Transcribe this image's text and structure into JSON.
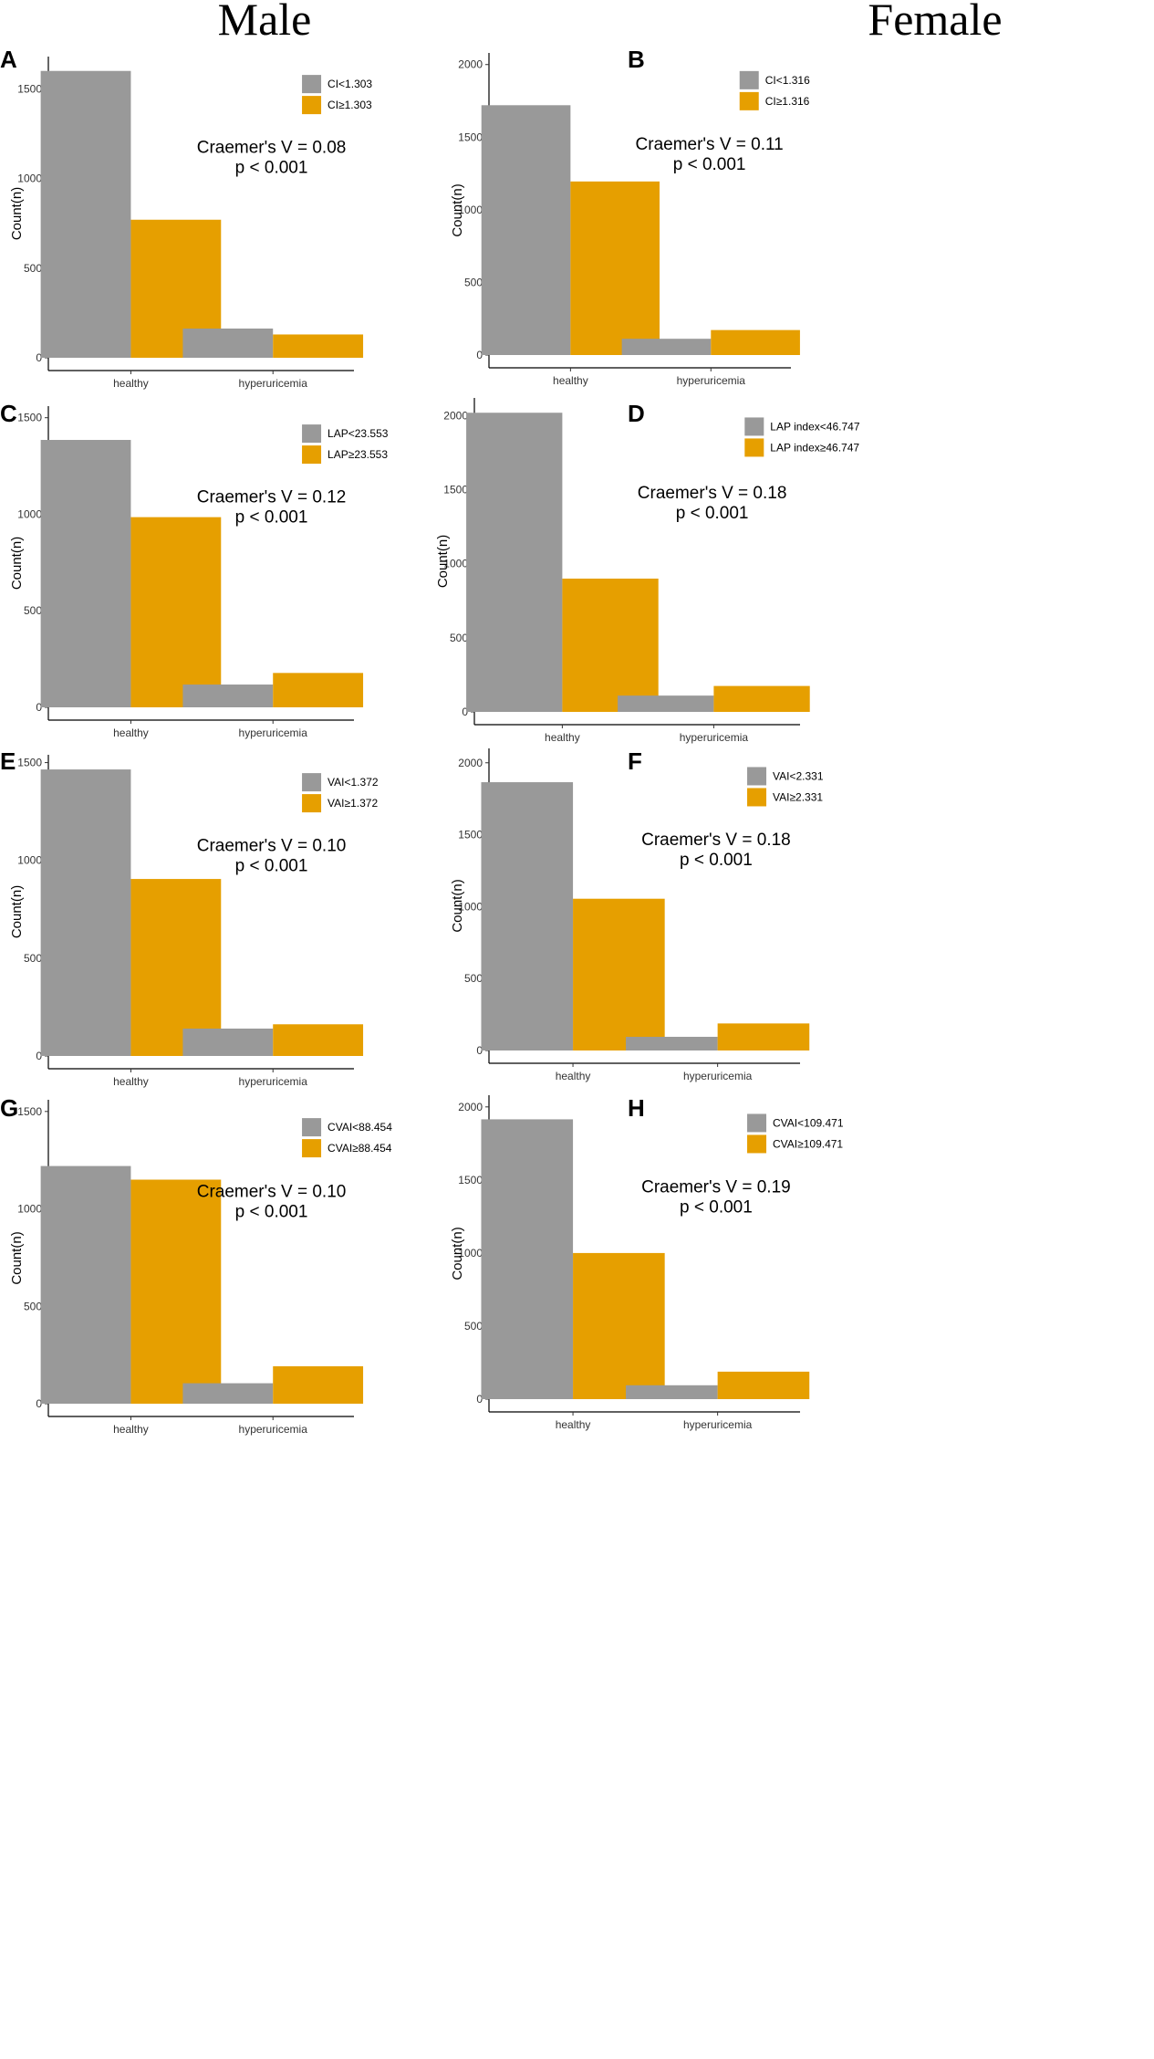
{
  "headers": {
    "male": "Male",
    "female": "Female"
  },
  "colors": {
    "low": "#999999",
    "high": "#E69F00"
  },
  "chart_data": [
    {
      "letter": "A",
      "sex": "Male",
      "type": "bar",
      "ylabel": "Count(n)",
      "ylim": [
        0,
        1680
      ],
      "yticks": [
        0,
        500,
        1000,
        1500
      ],
      "categories": [
        "healthy",
        "hyperuricemia"
      ],
      "series": [
        {
          "name": "CI<1.303",
          "values": [
            1600,
            163
          ]
        },
        {
          "name": "CI≥1.303",
          "values": [
            770,
            130
          ]
        }
      ],
      "stat": [
        "Craemer's V = 0.08",
        "p < 0.001"
      ]
    },
    {
      "letter": "B",
      "sex": "Female",
      "type": "bar",
      "ylabel": "Count(n)",
      "ylim": [
        0,
        2080
      ],
      "yticks": [
        0,
        500,
        1000,
        1500,
        2000
      ],
      "categories": [
        "healthy",
        "hyperuricemia"
      ],
      "series": [
        {
          "name": "CI<1.316",
          "values": [
            1720,
            112
          ]
        },
        {
          "name": "CI≥1.316",
          "values": [
            1195,
            172
          ]
        }
      ],
      "stat": [
        "Craemer's V = 0.11",
        "p < 0.001"
      ]
    },
    {
      "letter": "C",
      "sex": "Male",
      "type": "bar",
      "ylabel": "Count(n)",
      "ylim": [
        0,
        1560
      ],
      "yticks": [
        0,
        500,
        1000,
        1500
      ],
      "categories": [
        "healthy",
        "hyperuricemia"
      ],
      "series": [
        {
          "name": "LAP<23.553",
          "values": [
            1385,
            118
          ]
        },
        {
          "name": "LAP≥23.553",
          "values": [
            985,
            178
          ]
        }
      ],
      "stat": [
        "Craemer's V = 0.12",
        "p < 0.001"
      ]
    },
    {
      "letter": "D",
      "sex": "Female",
      "type": "bar",
      "ylabel": "Count(n)",
      "ylim": [
        0,
        2120
      ],
      "yticks": [
        0,
        500,
        1000,
        1500,
        2000
      ],
      "categories": [
        "healthy",
        "hyperuricemia"
      ],
      "series": [
        {
          "name": "LAP index<46.747",
          "values": [
            2020,
            110
          ]
        },
        {
          "name": "LAP index≥46.747",
          "values": [
            900,
            175
          ]
        }
      ],
      "stat": [
        "Craemer's V = 0.18",
        "p < 0.001"
      ]
    },
    {
      "letter": "E",
      "sex": "Male",
      "type": "bar",
      "ylabel": "Count(n)",
      "ylim": [
        0,
        1540
      ],
      "yticks": [
        0,
        500,
        1000,
        1500
      ],
      "categories": [
        "healthy",
        "hyperuricemia"
      ],
      "series": [
        {
          "name": "VAI<1.372",
          "values": [
            1465,
            140
          ]
        },
        {
          "name": "VAI≥1.372",
          "values": [
            905,
            162
          ]
        }
      ],
      "stat": [
        "Craemer's V = 0.10",
        "p < 0.001"
      ]
    },
    {
      "letter": "F",
      "sex": "Female",
      "type": "bar",
      "ylabel": "Count(n)",
      "ylim": [
        0,
        2100
      ],
      "yticks": [
        0,
        500,
        1000,
        1500,
        2000
      ],
      "categories": [
        "healthy",
        "hyperuricemia"
      ],
      "series": [
        {
          "name": "VAI<2.331",
          "values": [
            1865,
            95
          ]
        },
        {
          "name": "VAI≥2.331",
          "values": [
            1055,
            188
          ]
        }
      ],
      "stat": [
        "Craemer's V = 0.18",
        "p < 0.001"
      ]
    },
    {
      "letter": "G",
      "sex": "Male",
      "type": "bar",
      "ylabel": "Count(n)",
      "ylim": [
        0,
        1560
      ],
      "yticks": [
        0,
        500,
        1000,
        1500
      ],
      "categories": [
        "healthy",
        "hyperuricemia"
      ],
      "series": [
        {
          "name": "CVAI<88.454",
          "values": [
            1220,
            105
          ]
        },
        {
          "name": "CVAI≥88.454",
          "values": [
            1150,
            192
          ]
        }
      ],
      "stat": [
        "Craemer's V = 0.10",
        "p < 0.001"
      ]
    },
    {
      "letter": "H",
      "sex": "Female",
      "type": "bar",
      "ylabel": "Count(n)",
      "ylim": [
        0,
        2080
      ],
      "yticks": [
        0,
        500,
        1000,
        1500,
        2000
      ],
      "categories": [
        "healthy",
        "hyperuricemia"
      ],
      "series": [
        {
          "name": "CVAI<109.471",
          "values": [
            1915,
            95
          ]
        },
        {
          "name": "CVAI≥109.471",
          "values": [
            1000,
            188
          ]
        }
      ],
      "stat": [
        "Craemer's V = 0.19",
        "p < 0.001"
      ]
    }
  ]
}
